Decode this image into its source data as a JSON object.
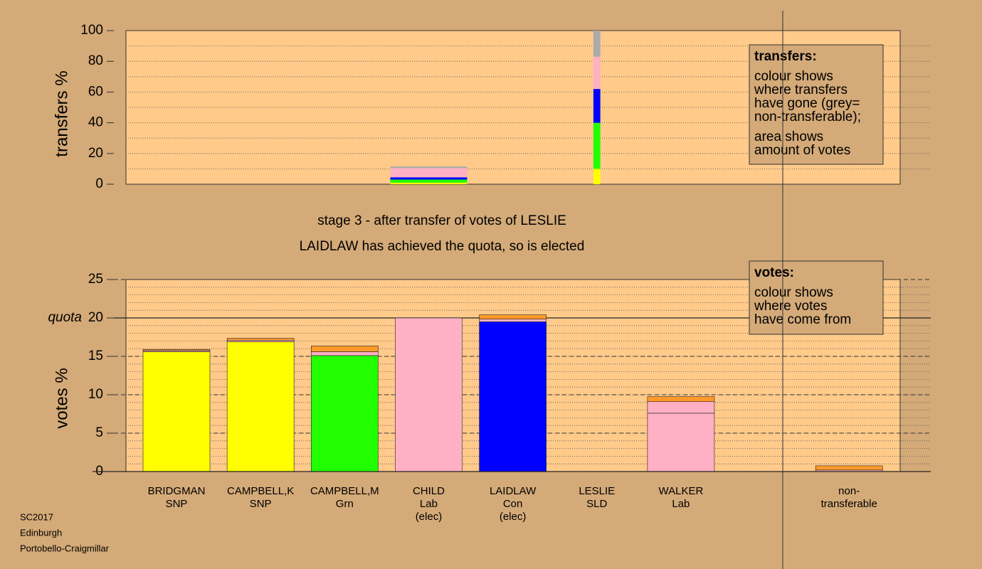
{
  "chart_data": [
    {
      "type": "bar",
      "stacked": true,
      "ylabel": "transfers %",
      "ylim": [
        0,
        100
      ],
      "yticks": [
        0,
        20,
        40,
        60,
        80,
        100
      ],
      "minor_grid_step": 10,
      "widths": [
        null,
        null,
        null,
        1,
        null,
        0.09,
        null,
        null
      ],
      "series": [
        {
          "color": "#ffff00",
          "values": [
            null,
            null,
            null,
            1,
            null,
            10,
            null,
            null
          ]
        },
        {
          "color": "#22ff00",
          "values": [
            null,
            null,
            null,
            2,
            null,
            30,
            null,
            null
          ]
        },
        {
          "color": "#0000ff",
          "values": [
            null,
            null,
            null,
            1.5,
            null,
            22,
            null,
            null
          ]
        },
        {
          "color": "#ffb0c4",
          "values": [
            null,
            null,
            null,
            6,
            null,
            21,
            null,
            null
          ]
        },
        {
          "color": "#aaaaaa",
          "values": [
            null,
            null,
            null,
            1,
            null,
            17,
            null,
            null
          ]
        }
      ],
      "legend": {
        "title": "transfers:",
        "paragraphs": [
          [
            "colour shows",
            "where transfers",
            "have gone (grey=",
            "non-transferable);"
          ],
          [
            "area shows",
            "amount of votes"
          ]
        ]
      }
    },
    {
      "type": "bar",
      "stacked": true,
      "ylabel": "votes %",
      "subtitle": [
        "stage 3 - after transfer of votes of LESLIE",
        "LAIDLAW has achieved the quota, so is elected"
      ],
      "categories": [
        [
          "BRIDGMAN",
          "SNP"
        ],
        [
          "CAMPBELL,K",
          "SNP"
        ],
        [
          "CAMPBELL,M",
          "Grn"
        ],
        [
          "CHILD",
          "Lab",
          "(elec)"
        ],
        [
          "LAIDLAW",
          "Con",
          "(elec)"
        ],
        [
          "LESLIE",
          "SLD"
        ],
        [
          "WALKER",
          "Lab"
        ],
        [
          "non-",
          "transferable"
        ]
      ],
      "ylim": [
        0,
        25
      ],
      "yticks": [
        0,
        5,
        10,
        15,
        20,
        25
      ],
      "minor_grid_step": 1,
      "quota": {
        "value": 20,
        "label": "quota"
      },
      "series": [
        {
          "colors": [
            "#ffff00",
            "#ffff00",
            "#22ff00",
            "#ffb0c4",
            "#0000ff",
            "#ff9a2a",
            "#ffb0c4",
            "#aaaaaa"
          ],
          "values": [
            15.6,
            16.9,
            15.1,
            20,
            19.5,
            0,
            7.6,
            0
          ]
        },
        {
          "color": "#ffb0c4",
          "values": [
            0.15,
            0.2,
            0.5,
            0,
            0.35,
            0,
            1.5,
            0.2
          ]
        },
        {
          "color": "#ff9a2a",
          "values": [
            0.15,
            0.25,
            0.75,
            0,
            0.55,
            0,
            0.65,
            0.55
          ]
        }
      ],
      "legend": {
        "title": "votes:",
        "paragraphs": [
          [
            "colour shows",
            "where votes",
            "have come from"
          ]
        ]
      }
    },
    {
      "type": "footer",
      "lines": [
        "SC2017",
        "Edinburgh",
        "Portobello-Craigmillar"
      ]
    }
  ]
}
